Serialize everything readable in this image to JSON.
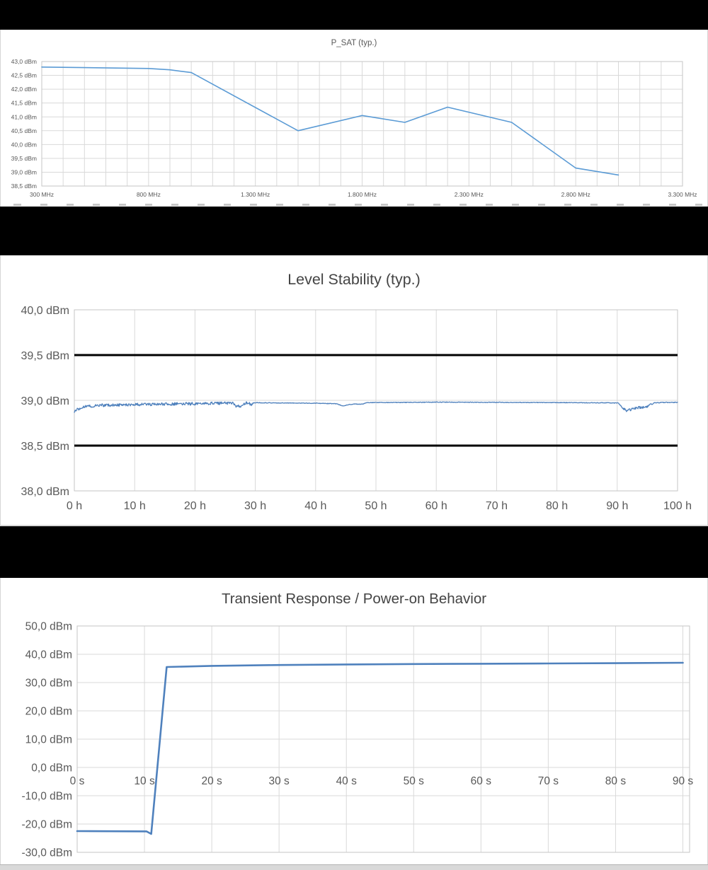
{
  "page": {
    "background": "#ffffff",
    "separator_color": "#000000",
    "gridline_color": "#d9d9d9",
    "frame_color": "#c6c6c6",
    "label_color": "#595959"
  },
  "chart_data": [
    {
      "id": "psat",
      "type": "line",
      "title": "P_SAT (typ.)",
      "x_unit": "MHz",
      "y_unit": "dBm",
      "xlim": [
        300,
        3300
      ],
      "ylim": [
        38.5,
        43.0
      ],
      "x_minor_gridline_step": 100,
      "grid": true,
      "legend": "none",
      "xticks": [
        {
          "x": 300,
          "label": "300 MHz"
        },
        {
          "x": 800,
          "label": "800 MHz"
        },
        {
          "x": 1300,
          "label": "1.300 MHz"
        },
        {
          "x": 1800,
          "label": "1.800 MHz"
        },
        {
          "x": 2300,
          "label": "2.300 MHz"
        },
        {
          "x": 2800,
          "label": "2.800 MHz"
        },
        {
          "x": 3300,
          "label": "3.300 MHz"
        }
      ],
      "yticks": [
        {
          "y": 43.0,
          "label": "43,0 dBm"
        },
        {
          "y": 42.5,
          "label": "42,5 dBm"
        },
        {
          "y": 42.0,
          "label": "42,0 dBm"
        },
        {
          "y": 41.5,
          "label": "41,5 dBm"
        },
        {
          "y": 41.0,
          "label": "41,0 dBm"
        },
        {
          "y": 40.5,
          "label": "40,5 dBm"
        },
        {
          "y": 40.0,
          "label": "40,0 dBm"
        },
        {
          "y": 39.5,
          "label": "39,5 dBm"
        },
        {
          "y": 39.0,
          "label": "39,0 dBm"
        },
        {
          "y": 38.5,
          "label": "38,5 dBm"
        }
      ],
      "series": [
        {
          "name": "P_SAT",
          "color": "#5b9bd5",
          "points": [
            [
              300,
              42.8
            ],
            [
              500,
              42.78
            ],
            [
              800,
              42.75
            ],
            [
              900,
              42.7
            ],
            [
              1000,
              42.6
            ],
            [
              1500,
              40.5
            ],
            [
              1800,
              41.05
            ],
            [
              2000,
              40.8
            ],
            [
              2200,
              41.35
            ],
            [
              2500,
              40.8
            ],
            [
              2800,
              39.15
            ],
            [
              3000,
              38.9
            ]
          ]
        }
      ]
    },
    {
      "id": "stability",
      "type": "line",
      "title": "Level Stability (typ.)",
      "x_unit": "h",
      "y_unit": "dBm",
      "xlim": [
        0,
        100
      ],
      "ylim": [
        38.0,
        40.0
      ],
      "grid": true,
      "legend": "none",
      "xticks": [
        {
          "x": 0,
          "label": "0 h"
        },
        {
          "x": 10,
          "label": "10 h"
        },
        {
          "x": 20,
          "label": "20 h"
        },
        {
          "x": 30,
          "label": "30 h"
        },
        {
          "x": 40,
          "label": "40 h"
        },
        {
          "x": 50,
          "label": "50 h"
        },
        {
          "x": 60,
          "label": "60 h"
        },
        {
          "x": 70,
          "label": "70 h"
        },
        {
          "x": 80,
          "label": "80 h"
        },
        {
          "x": 90,
          "label": "90 h"
        },
        {
          "x": 100,
          "label": "100 h"
        }
      ],
      "yticks": [
        {
          "y": 40.0,
          "label": "40,0 dBm"
        },
        {
          "y": 39.5,
          "label": "39,5 dBm"
        },
        {
          "y": 39.0,
          "label": "39,0 dBm"
        },
        {
          "y": 38.5,
          "label": "38,5 dBm"
        },
        {
          "y": 38.0,
          "label": "38,0 dBm"
        }
      ],
      "limit_lines": [
        {
          "y": 39.5,
          "color": "#000000"
        },
        {
          "y": 38.5,
          "color": "#000000"
        }
      ],
      "series": [
        {
          "name": "Level",
          "color": "#4f81bd",
          "base_points": [
            [
              0,
              38.87
            ],
            [
              0.4,
              38.9
            ],
            [
              1.5,
              38.93
            ],
            [
              4,
              38.945
            ],
            [
              8,
              38.95
            ],
            [
              14,
              38.958
            ],
            [
              20,
              38.963
            ],
            [
              24,
              38.968
            ],
            [
              26.3,
              38.968
            ],
            [
              26.8,
              38.93
            ],
            [
              27.6,
              38.937
            ],
            [
              28.2,
              38.965
            ],
            [
              28.8,
              38.972
            ],
            [
              29.3,
              38.955
            ],
            [
              29.8,
              38.975
            ],
            [
              32,
              38.972
            ],
            [
              40,
              38.968
            ],
            [
              43.5,
              38.962
            ],
            [
              44.6,
              38.935
            ],
            [
              45.3,
              38.95
            ],
            [
              46,
              38.958
            ],
            [
              47.8,
              38.958
            ],
            [
              48.4,
              38.975
            ],
            [
              52,
              38.976
            ],
            [
              60,
              38.98
            ],
            [
              70,
              38.978
            ],
            [
              80,
              38.975
            ],
            [
              88,
              38.973
            ],
            [
              90.2,
              38.97
            ],
            [
              90.8,
              38.915
            ],
            [
              91.6,
              38.885
            ],
            [
              92.6,
              38.905
            ],
            [
              93.6,
              38.92
            ],
            [
              94.8,
              38.925
            ],
            [
              95.6,
              38.95
            ],
            [
              96.1,
              38.972
            ],
            [
              98,
              38.977
            ],
            [
              100,
              38.978
            ]
          ],
          "noise_segments": [
            {
              "from": 0,
              "to": 29.6,
              "amp": 0.016
            },
            {
              "from": 29.6,
              "to": 90.4,
              "amp": 0.0035
            },
            {
              "from": 90.4,
              "to": 95.7,
              "amp": 0.014
            },
            {
              "from": 95.7,
              "to": 100,
              "amp": 0.004
            }
          ]
        }
      ]
    },
    {
      "id": "transient",
      "type": "line",
      "title": "Transient Response / Power-on Behavior",
      "x_unit": "s",
      "y_unit": "dBm",
      "xlim": [
        0,
        91
      ],
      "ylim": [
        -30,
        50
      ],
      "grid": true,
      "legend": "none",
      "xticks": [
        {
          "x": 0,
          "label": "0 s"
        },
        {
          "x": 10,
          "label": "10 s"
        },
        {
          "x": 20,
          "label": "20 s"
        },
        {
          "x": 30,
          "label": "30 s"
        },
        {
          "x": 40,
          "label": "40 s"
        },
        {
          "x": 50,
          "label": "50 s"
        },
        {
          "x": 60,
          "label": "60 s"
        },
        {
          "x": 70,
          "label": "70 s"
        },
        {
          "x": 80,
          "label": "80 s"
        },
        {
          "x": 90,
          "label": "90 s"
        }
      ],
      "yticks": [
        {
          "y": 50,
          "label": "50,0 dBm"
        },
        {
          "y": 40,
          "label": "40,0 dBm"
        },
        {
          "y": 30,
          "label": "30,0 dBm"
        },
        {
          "y": 20,
          "label": "20,0 dBm"
        },
        {
          "y": 10,
          "label": "10,0 dBm"
        },
        {
          "y": 0,
          "label": "0,0 dBm"
        },
        {
          "y": -10,
          "label": "-10,0 dBm"
        },
        {
          "y": -20,
          "label": "-20,0 dBm"
        },
        {
          "y": -30,
          "label": "-30,0 dBm"
        }
      ],
      "series": [
        {
          "name": "Power-on",
          "color": "#4f81bd",
          "points": [
            [
              0,
              -22.5
            ],
            [
              10.3,
              -22.6
            ],
            [
              11.0,
              -23.5
            ],
            [
              13.3,
              35.5
            ],
            [
              20,
              35.9
            ],
            [
              30,
              36.2
            ],
            [
              40,
              36.4
            ],
            [
              50,
              36.55
            ],
            [
              60,
              36.65
            ],
            [
              70,
              36.75
            ],
            [
              80,
              36.85
            ],
            [
              90,
              37.0
            ]
          ]
        }
      ]
    }
  ]
}
